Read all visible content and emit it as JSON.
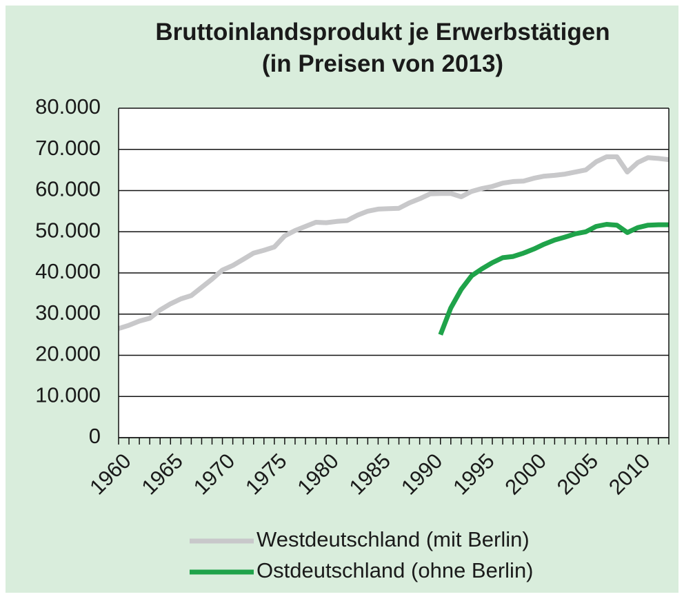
{
  "chart_data": {
    "type": "line",
    "title": "Bruttoinlandsprodukt je Erwerbstätigen",
    "subtitle": "(in Preisen von 2013)",
    "x": [
      1960,
      1961,
      1962,
      1963,
      1964,
      1965,
      1966,
      1967,
      1968,
      1969,
      1970,
      1971,
      1972,
      1973,
      1974,
      1975,
      1976,
      1977,
      1978,
      1979,
      1980,
      1981,
      1982,
      1983,
      1984,
      1985,
      1986,
      1987,
      1988,
      1989,
      1990,
      1991,
      1992,
      1993,
      1994,
      1995,
      1996,
      1997,
      1998,
      1999,
      2000,
      2001,
      2002,
      2003,
      2004,
      2005,
      2006,
      2007,
      2008,
      2009,
      2010,
      2011,
      2012,
      2013
    ],
    "series": [
      {
        "name": "Westdeutschland (mit Berlin)",
        "color": "#c8c8ca",
        "values": [
          26500,
          27300,
          28300,
          29000,
          31000,
          32500,
          33700,
          34500,
          36500,
          38500,
          40700,
          41800,
          43300,
          44800,
          45500,
          46300,
          49000,
          50300,
          51300,
          52300,
          52200,
          52500,
          52700,
          54000,
          55000,
          55500,
          55600,
          55700,
          57000,
          58000,
          59200,
          59300,
          59300,
          58500,
          59800,
          60500,
          61000,
          61800,
          62200,
          62300,
          63000,
          63500,
          63700,
          64000,
          64500,
          65000,
          67000,
          68200,
          68200,
          64500,
          66800,
          68000,
          67800,
          67500
        ]
      },
      {
        "name": "Ostdeutschland (ohne Berlin)",
        "color": "#1fa34a",
        "values": [
          null,
          null,
          null,
          null,
          null,
          null,
          null,
          null,
          null,
          null,
          null,
          null,
          null,
          null,
          null,
          null,
          null,
          null,
          null,
          null,
          null,
          null,
          null,
          null,
          null,
          null,
          null,
          null,
          null,
          null,
          null,
          25000,
          31500,
          36000,
          39300,
          41000,
          42500,
          43700,
          44000,
          44800,
          45800,
          47000,
          48000,
          48700,
          49500,
          50000,
          51300,
          51800,
          51600,
          49800,
          51000,
          51600,
          51700,
          51700
        ]
      }
    ],
    "xlim": [
      1960,
      2013
    ],
    "xticks": [
      1960,
      1965,
      1970,
      1975,
      1980,
      1985,
      1990,
      1995,
      2000,
      2005,
      2010
    ],
    "xminorticks": [
      1960,
      1961,
      1962,
      1963,
      1964,
      1965,
      1966,
      1967,
      1968,
      1969,
      1970,
      1971,
      1972,
      1973,
      1974,
      1975,
      1976,
      1977,
      1978,
      1979,
      1980,
      1981,
      1982,
      1983,
      1984,
      1985,
      1986,
      1987,
      1988,
      1989,
      1990,
      1991,
      1992,
      1993,
      1994,
      1995,
      1996,
      1997,
      1998,
      1999,
      2000,
      2001,
      2002,
      2003,
      2004,
      2005,
      2006,
      2007,
      2008,
      2009,
      2010,
      2011,
      2012,
      2013
    ],
    "ylim": [
      0,
      80000
    ],
    "yticks": [
      0,
      {
        "value": 10000,
        "label": "10.000"
      },
      {
        "value": 20000,
        "label": "20.000"
      },
      {
        "value": 30000,
        "label": "30.000"
      },
      {
        "value": 40000,
        "label": "40.000"
      },
      {
        "value": 50000,
        "label": "50.000"
      },
      {
        "value": 60000,
        "label": "60.000"
      },
      {
        "value": 70000,
        "label": "70.000"
      },
      {
        "value": 80000,
        "label": "80.000"
      }
    ],
    "grid": true,
    "legend": "bottom"
  }
}
